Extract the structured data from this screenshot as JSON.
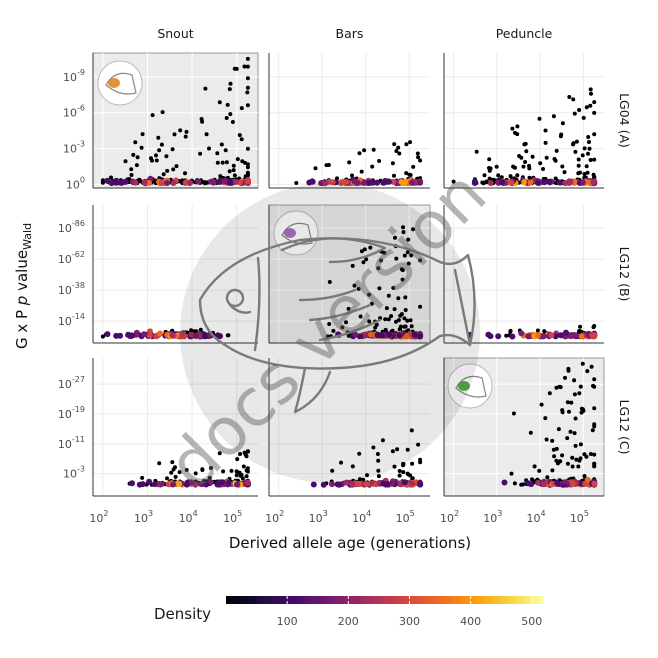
{
  "chart_data": {
    "type": "scatter",
    "xlabel": "Derived allele age (generations)",
    "ylabel": {
      "prefix": "G x P ",
      "italic": "p",
      "middle": " value",
      "subscript": "Wald"
    },
    "x_scale": "log10",
    "xlim": [
      60,
      300000
    ],
    "x_ticks": [
      {
        "value": 100,
        "base": "10",
        "exp": "2"
      },
      {
        "value": 1000,
        "base": "10",
        "exp": "3"
      },
      {
        "value": 10000,
        "base": "10",
        "exp": "4"
      },
      {
        "value": 100000,
        "base": "10",
        "exp": "5"
      }
    ],
    "columns": [
      "Snout",
      "Bars",
      "Peduncle"
    ],
    "rows": [
      {
        "label": "LG04 (A)",
        "y_scale": "log10(1/p)",
        "ylim": [
          -0.3,
          11
        ],
        "y_ticks": [
          {
            "value": 0,
            "base": "10",
            "exp": "0"
          },
          {
            "value": 3,
            "base": "10",
            "exp": "-3"
          },
          {
            "value": 6,
            "base": "10",
            "exp": "-6"
          },
          {
            "value": 9,
            "base": "10",
            "exp": "-9"
          }
        ]
      },
      {
        "label": "LG12 (B)",
        "y_scale": "log10(1/p)",
        "ylim": [
          -3,
          104
        ],
        "y_ticks": [
          {
            "value": 14,
            "base": "10",
            "exp": "-14"
          },
          {
            "value": 38,
            "base": "10",
            "exp": "-38"
          },
          {
            "value": 62,
            "base": "10",
            "exp": "-62"
          },
          {
            "value": 86,
            "base": "10",
            "exp": "-86"
          }
        ]
      },
      {
        "label": "LG12 (C)",
        "y_scale": "log10(1/p)",
        "ylim": [
          -3,
          34
        ],
        "y_ticks": [
          {
            "value": 3,
            "base": "10",
            "exp": "-3"
          },
          {
            "value": 11,
            "base": "10",
            "exp": "-11"
          },
          {
            "value": 19,
            "base": "10",
            "exp": "-19"
          },
          {
            "value": 27,
            "base": "10",
            "exp": "-27"
          }
        ]
      }
    ],
    "highlighted_panels": [
      [
        0,
        0
      ],
      [
        1,
        1
      ],
      [
        2,
        2
      ]
    ],
    "legend": {
      "title": "Density",
      "position": "bottom",
      "range": [
        0,
        520
      ],
      "ticks": [
        100,
        200,
        300,
        400,
        500
      ],
      "colors": [
        "#000004",
        "#1b0c41",
        "#4a0c6b",
        "#781c6d",
        "#a52c60",
        "#cf4446",
        "#ed6925",
        "#fb9b06",
        "#f7d13d",
        "#fcffa4"
      ]
    },
    "panel_bg": "#ebebeb",
    "grid": true
  },
  "watermark": {
    "text": "docs version"
  }
}
